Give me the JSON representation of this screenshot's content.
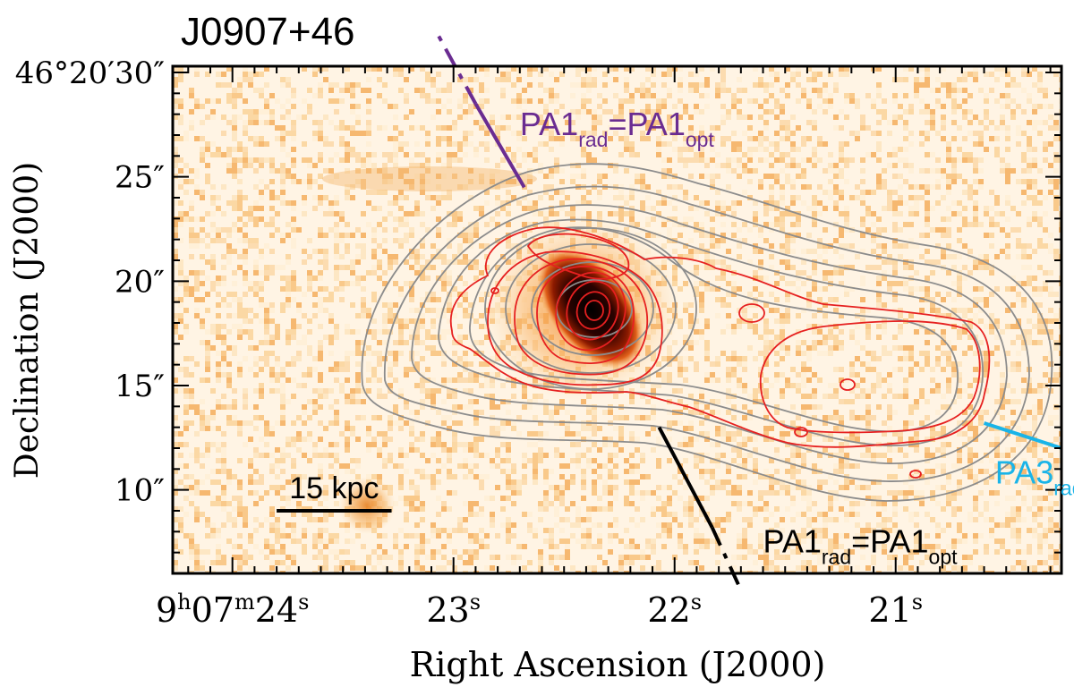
{
  "chart_data": {
    "type": "heatmap",
    "title": "J0907+46",
    "xlabel": "Right Ascension (J2000)",
    "ylabel": "Declination (J2000)",
    "x_ticks": [
      {
        "h": "9",
        "m": "07",
        "s": "24",
        "value": 24
      },
      {
        "s": "23",
        "value": 23
      },
      {
        "s": "22",
        "value": 22
      },
      {
        "s": "21",
        "value": 21
      }
    ],
    "y_ticks": [
      {
        "label": "46°20′30″",
        "value": 30
      },
      {
        "label": "25″",
        "value": 25
      },
      {
        "label": "20″",
        "value": 20
      },
      {
        "label": "15″",
        "value": 15
      },
      {
        "label": "10″",
        "value": 10
      }
    ],
    "xlim": [
      24.27,
      20.25
    ],
    "ylim": [
      6.0,
      30.3
    ],
    "scale_bar": {
      "label": "15 kpc",
      "ra_from": 23.8,
      "ra_to": 23.28,
      "dec": 9.0
    },
    "position_angles": [
      {
        "base": "PA1",
        "base_sub": "rad",
        "eq": "=",
        "base2": "PA1",
        "base2_sub": "opt",
        "color": "#6a2c91",
        "line_from": [
          22.68,
          24.5
        ],
        "line_to": [
          23.07,
          31.8
        ],
        "solid_until": [
          22.9,
          28.5
        ],
        "label_ra": 22.7,
        "label_dec": 27.0
      },
      {
        "base": "PA1",
        "base_sub": "rad",
        "eq": "=",
        "base2": "PA1",
        "base2_sub": "opt",
        "color": "#000000",
        "line_from": [
          22.07,
          13.0
        ],
        "line_to": [
          21.7,
          5.2
        ],
        "solid_until": [
          21.83,
          8.2
        ],
        "label_ra": 21.6,
        "label_dec": 7.0
      },
      {
        "base": "PA3",
        "base_sub": "rad",
        "color": "#1ab4e8",
        "line_from": [
          20.6,
          13.2
        ],
        "line_to": [
          20.25,
          12.0
        ],
        "solid_until": [
          20.25,
          12.0
        ],
        "label_ra": 20.55,
        "label_dec": 10.3
      }
    ],
    "colors": {
      "background_image": "#fff6e8",
      "image_low": "#f8c070",
      "image_mid": "#e8731c",
      "image_high": "#1a0000",
      "radio_contours_gray": "#8c8c8c",
      "radio_contours_red": "#e62020"
    }
  }
}
